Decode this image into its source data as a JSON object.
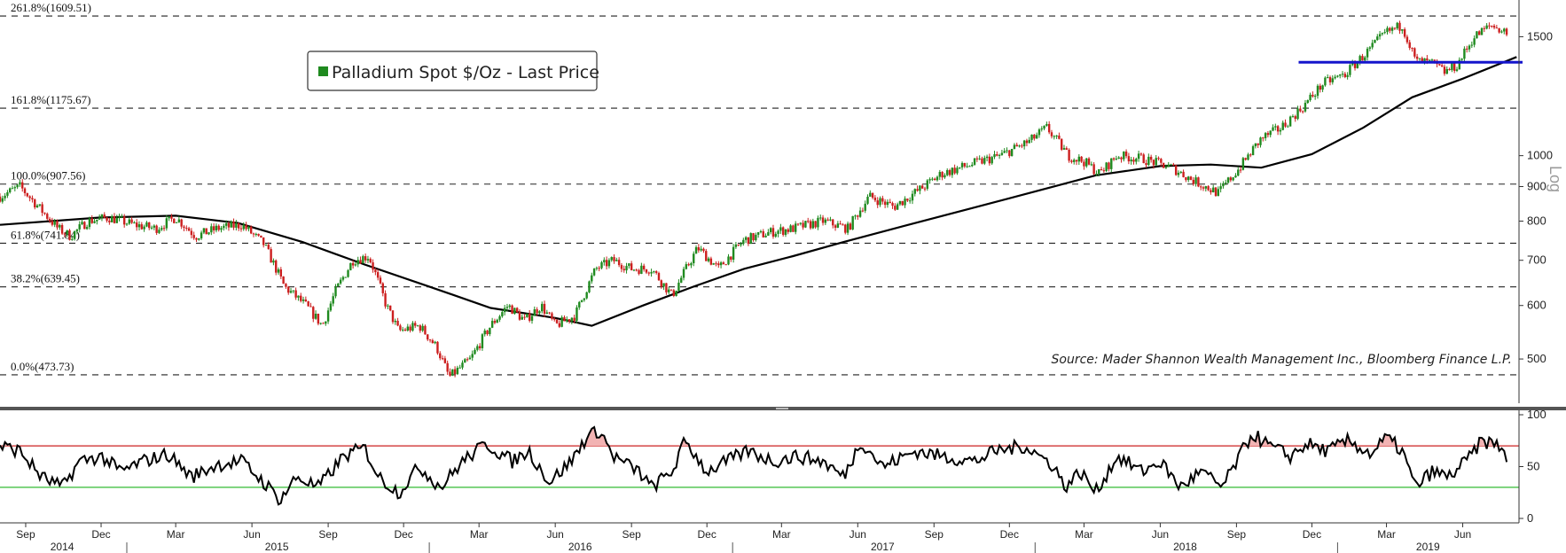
{
  "chart_data": {
    "type": "candlestick",
    "legend": {
      "label": "Palladium Spot $/Oz - Last Price",
      "color": "#1f8a1f"
    },
    "source": "Source: Mader Shannon Wealth Management Inc., Bloomberg Finance L.P.",
    "scale_label": "Log",
    "price_panel": {
      "y_scale": "log",
      "ylim": [
        430,
        1700
      ],
      "y_ticks": [
        "1500",
        "1000",
        "900",
        "800",
        "700",
        "600",
        "500"
      ],
      "y_tick_values": [
        1500,
        1000,
        900,
        800,
        700,
        600,
        500
      ],
      "fibonacci_levels": [
        {
          "label": "261.8%(1609.51)",
          "value": 1609.51
        },
        {
          "label": "161.8%(1175.67)",
          "value": 1175.67
        },
        {
          "label": "100.0%(907.56)",
          "value": 907.56
        },
        {
          "label": "61.8%(741.84)",
          "value": 741.84
        },
        {
          "label": "38.2%(639.45)",
          "value": 639.45
        },
        {
          "label": "0.0%(473.73)",
          "value": 473.73
        }
      ],
      "support_line": {
        "value": 1375,
        "from": "2018-11-15",
        "to": "2019-08-05",
        "color": "#1414cc"
      },
      "up_color": "#1f8a1f",
      "down_color": "#cc1f1f",
      "price_path": [
        [
          "2014-08-01",
          870
        ],
        [
          "2014-08-25",
          900
        ],
        [
          "2014-09-20",
          830
        ],
        [
          "2014-10-10",
          780
        ],
        [
          "2014-10-25",
          760
        ],
        [
          "2014-11-15",
          800
        ],
        [
          "2014-12-10",
          810
        ],
        [
          "2015-01-10",
          790
        ],
        [
          "2015-02-05",
          780
        ],
        [
          "2015-03-01",
          810
        ],
        [
          "2015-03-25",
          760
        ],
        [
          "2015-04-20",
          780
        ],
        [
          "2015-05-20",
          790
        ],
        [
          "2015-06-15",
          740
        ],
        [
          "2015-07-10",
          640
        ],
        [
          "2015-08-05",
          600
        ],
        [
          "2015-08-25",
          560
        ],
        [
          "2015-09-10",
          630
        ],
        [
          "2015-10-01",
          700
        ],
        [
          "2015-10-20",
          710
        ],
        [
          "2015-11-10",
          600
        ],
        [
          "2015-11-25",
          550
        ],
        [
          "2015-12-20",
          560
        ],
        [
          "2016-01-10",
          520
        ],
        [
          "2016-01-25",
          470
        ],
        [
          "2016-02-20",
          500
        ],
        [
          "2016-03-15",
          560
        ],
        [
          "2016-04-05",
          600
        ],
        [
          "2016-04-25",
          570
        ],
        [
          "2016-05-15",
          600
        ],
        [
          "2016-06-01",
          560
        ],
        [
          "2016-06-25",
          580
        ],
        [
          "2016-07-20",
          680
        ],
        [
          "2016-08-10",
          700
        ],
        [
          "2016-09-01",
          680
        ],
        [
          "2016-09-25",
          680
        ],
        [
          "2016-10-20",
          620
        ],
        [
          "2016-11-20",
          730
        ],
        [
          "2016-12-15",
          680
        ],
        [
          "2017-01-15",
          750
        ],
        [
          "2017-02-15",
          770
        ],
        [
          "2017-03-15",
          780
        ],
        [
          "2017-04-20",
          800
        ],
        [
          "2017-05-20",
          780
        ],
        [
          "2017-06-15",
          870
        ],
        [
          "2017-07-15",
          840
        ],
        [
          "2017-08-20",
          900
        ],
        [
          "2017-09-10",
          940
        ],
        [
          "2017-10-15",
          970
        ],
        [
          "2017-11-20",
          1000
        ],
        [
          "2017-12-25",
          1050
        ],
        [
          "2018-01-15",
          1100
        ],
        [
          "2018-02-10",
          1000
        ],
        [
          "2018-03-01",
          980
        ],
        [
          "2018-03-20",
          940
        ],
        [
          "2018-04-10",
          1000
        ],
        [
          "2018-05-10",
          990
        ],
        [
          "2018-06-15",
          960
        ],
        [
          "2018-07-10",
          920
        ],
        [
          "2018-08-10",
          880
        ],
        [
          "2018-09-05",
          960
        ],
        [
          "2018-10-01",
          1060
        ],
        [
          "2018-10-25",
          1100
        ],
        [
          "2018-11-20",
          1180
        ],
        [
          "2018-12-15",
          1280
        ],
        [
          "2019-01-10",
          1320
        ],
        [
          "2019-02-05",
          1420
        ],
        [
          "2019-02-28",
          1520
        ],
        [
          "2019-03-20",
          1560
        ],
        [
          "2019-04-05",
          1380
        ],
        [
          "2019-04-25",
          1370
        ],
        [
          "2019-05-10",
          1330
        ],
        [
          "2019-05-25",
          1360
        ],
        [
          "2019-06-15",
          1500
        ],
        [
          "2019-07-05",
          1560
        ],
        [
          "2019-07-25",
          1520
        ]
      ],
      "moving_average_path": [
        [
          "2014-08-01",
          790
        ],
        [
          "2014-12-01",
          810
        ],
        [
          "2015-03-01",
          815
        ],
        [
          "2015-05-15",
          795
        ],
        [
          "2015-08-01",
          745
        ],
        [
          "2015-10-15",
          690
        ],
        [
          "2016-01-01",
          640
        ],
        [
          "2016-03-15",
          595
        ],
        [
          "2016-06-01",
          575
        ],
        [
          "2016-07-15",
          560
        ],
        [
          "2016-09-15",
          600
        ],
        [
          "2016-11-15",
          640
        ],
        [
          "2017-01-15",
          680
        ],
        [
          "2017-03-15",
          710
        ],
        [
          "2017-05-15",
          745
        ],
        [
          "2017-08-01",
          790
        ],
        [
          "2017-10-15",
          835
        ],
        [
          "2018-01-01",
          885
        ],
        [
          "2018-03-15",
          935
        ],
        [
          "2018-06-01",
          965
        ],
        [
          "2018-08-01",
          970
        ],
        [
          "2018-10-01",
          960
        ],
        [
          "2018-12-01",
          1005
        ],
        [
          "2019-02-01",
          1100
        ],
        [
          "2019-04-01",
          1220
        ],
        [
          "2019-06-01",
          1300
        ],
        [
          "2019-08-05",
          1400
        ]
      ]
    },
    "rsi_panel": {
      "ylim": [
        0,
        100
      ],
      "y_ticks": [
        "100",
        "50",
        "0"
      ],
      "y_tick_values": [
        100,
        50,
        0
      ],
      "overbought": 70,
      "oversold": 30,
      "overbought_color": "#cc2222",
      "oversold_color": "#33bb33",
      "rsi_path": [
        [
          "2014-08-01",
          70
        ],
        [
          "2014-08-25",
          65
        ],
        [
          "2014-09-20",
          40
        ],
        [
          "2014-10-15",
          30
        ],
        [
          "2014-11-05",
          55
        ],
        [
          "2014-12-01",
          60
        ],
        [
          "2014-12-25",
          45
        ],
        [
          "2015-01-20",
          55
        ],
        [
          "2015-02-20",
          62
        ],
        [
          "2015-03-20",
          40
        ],
        [
          "2015-04-20",
          52
        ],
        [
          "2015-05-20",
          55
        ],
        [
          "2015-06-15",
          35
        ],
        [
          "2015-07-05",
          18
        ],
        [
          "2015-07-25",
          40
        ],
        [
          "2015-08-20",
          30
        ],
        [
          "2015-09-20",
          60
        ],
        [
          "2015-10-15",
          68
        ],
        [
          "2015-11-01",
          40
        ],
        [
          "2015-11-25",
          25
        ],
        [
          "2015-12-20",
          50
        ],
        [
          "2016-01-15",
          30
        ],
        [
          "2016-02-10",
          55
        ],
        [
          "2016-03-10",
          72
        ],
        [
          "2016-04-10",
          55
        ],
        [
          "2016-04-30",
          65
        ],
        [
          "2016-05-25",
          35
        ],
        [
          "2016-06-20",
          55
        ],
        [
          "2016-07-10",
          80
        ],
        [
          "2016-07-25",
          85
        ],
        [
          "2016-08-10",
          60
        ],
        [
          "2016-09-10",
          45
        ],
        [
          "2016-09-25",
          30
        ],
        [
          "2016-10-20",
          45
        ],
        [
          "2016-11-05",
          75
        ],
        [
          "2016-12-01",
          45
        ],
        [
          "2016-12-25",
          55
        ],
        [
          "2017-01-20",
          65
        ],
        [
          "2017-02-20",
          55
        ],
        [
          "2017-03-20",
          60
        ],
        [
          "2017-04-20",
          55
        ],
        [
          "2017-05-15",
          40
        ],
        [
          "2017-06-05",
          75
        ],
        [
          "2017-07-01",
          50
        ],
        [
          "2017-08-10",
          65
        ],
        [
          "2017-09-10",
          60
        ],
        [
          "2017-10-20",
          55
        ],
        [
          "2017-11-15",
          65
        ],
        [
          "2017-12-20",
          70
        ],
        [
          "2018-01-25",
          50
        ],
        [
          "2018-02-05",
          30
        ],
        [
          "2018-02-25",
          45
        ],
        [
          "2018-03-15",
          25
        ],
        [
          "2018-04-10",
          60
        ],
        [
          "2018-05-10",
          45
        ],
        [
          "2018-06-01",
          55
        ],
        [
          "2018-06-25",
          30
        ],
        [
          "2018-07-20",
          45
        ],
        [
          "2018-08-15",
          30
        ],
        [
          "2018-09-05",
          60
        ],
        [
          "2018-09-20",
          82
        ],
        [
          "2018-10-10",
          70
        ],
        [
          "2018-11-05",
          60
        ],
        [
          "2018-11-25",
          72
        ],
        [
          "2018-12-20",
          65
        ],
        [
          "2019-01-15",
          75
        ],
        [
          "2019-02-10",
          62
        ],
        [
          "2019-03-01",
          78
        ],
        [
          "2019-03-20",
          65
        ],
        [
          "2019-04-05",
          30
        ],
        [
          "2019-04-25",
          45
        ],
        [
          "2019-05-15",
          40
        ],
        [
          "2019-06-05",
          55
        ],
        [
          "2019-06-25",
          75
        ],
        [
          "2019-07-15",
          70
        ],
        [
          "2019-08-01",
          50
        ]
      ]
    },
    "x_axis": {
      "month_ticks": [
        {
          "label": "Sep",
          "date": "2014-09-01"
        },
        {
          "label": "Dec",
          "date": "2014-12-01"
        },
        {
          "label": "Mar",
          "date": "2015-03-01"
        },
        {
          "label": "Jun",
          "date": "2015-06-01"
        },
        {
          "label": "Sep",
          "date": "2015-09-01"
        },
        {
          "label": "Dec",
          "date": "2015-12-01"
        },
        {
          "label": "Mar",
          "date": "2016-03-01"
        },
        {
          "label": "Jun",
          "date": "2016-06-01"
        },
        {
          "label": "Sep",
          "date": "2016-09-01"
        },
        {
          "label": "Dec",
          "date": "2016-12-01"
        },
        {
          "label": "Mar",
          "date": "2017-03-01"
        },
        {
          "label": "Jun",
          "date": "2017-06-01"
        },
        {
          "label": "Sep",
          "date": "2017-09-01"
        },
        {
          "label": "Dec",
          "date": "2017-12-01"
        },
        {
          "label": "Mar",
          "date": "2018-03-01"
        },
        {
          "label": "Jun",
          "date": "2018-06-01"
        },
        {
          "label": "Sep",
          "date": "2018-09-01"
        },
        {
          "label": "Dec",
          "date": "2018-12-01"
        },
        {
          "label": "Mar",
          "date": "2019-03-01"
        },
        {
          "label": "Jun",
          "date": "2019-06-01"
        }
      ],
      "year_labels": [
        {
          "label": "2014",
          "date": "2014-10-15"
        },
        {
          "label": "2015",
          "date": "2015-07-01"
        },
        {
          "label": "2016",
          "date": "2016-07-01"
        },
        {
          "label": "2017",
          "date": "2017-07-01"
        },
        {
          "label": "2018",
          "date": "2018-07-01"
        },
        {
          "label": "2019",
          "date": "2019-04-20"
        }
      ],
      "year_separators": [
        "2015-01-01",
        "2016-01-01",
        "2017-01-01",
        "2018-01-01",
        "2019-01-01"
      ]
    }
  }
}
